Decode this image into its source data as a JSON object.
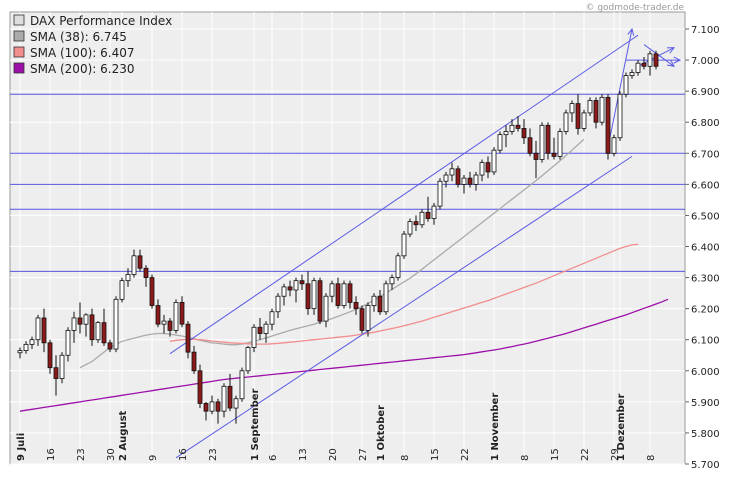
{
  "watermark": "© godmode-trader.de",
  "chart_data": {
    "type": "candlestick",
    "title": "DAX Performance Index",
    "ylim": [
      5700,
      7100
    ],
    "y_ticks": [
      "7.100",
      "7.000",
      "6.900",
      "6.800",
      "6.700",
      "6.600",
      "6.500",
      "6.400",
      "6.300",
      "6.200",
      "6.100",
      "6.000",
      "5.900",
      "5.800",
      "5.700"
    ],
    "y_tick_values": [
      7100,
      7000,
      6900,
      6800,
      6700,
      6600,
      6500,
      6400,
      6300,
      6200,
      6100,
      6000,
      5900,
      5800,
      5700
    ],
    "x_labels": [
      {
        "i": 0,
        "text": "9 Juli",
        "bold": true
      },
      {
        "i": 5,
        "text": "16",
        "bold": false
      },
      {
        "i": 10,
        "text": "23",
        "bold": false
      },
      {
        "i": 15,
        "text": "30",
        "bold": false
      },
      {
        "i": 17,
        "text": "2 August",
        "bold": true
      },
      {
        "i": 22,
        "text": "9",
        "bold": false
      },
      {
        "i": 27,
        "text": "16",
        "bold": false
      },
      {
        "i": 32,
        "text": "23",
        "bold": false
      },
      {
        "i": 39,
        "text": "1 September",
        "bold": true
      },
      {
        "i": 42,
        "text": "6",
        "bold": false
      },
      {
        "i": 47,
        "text": "13",
        "bold": false
      },
      {
        "i": 52,
        "text": "20",
        "bold": false
      },
      {
        "i": 57,
        "text": "27",
        "bold": false
      },
      {
        "i": 60,
        "text": "1 Oktober",
        "bold": true
      },
      {
        "i": 64,
        "text": "8",
        "bold": false
      },
      {
        "i": 69,
        "text": "15",
        "bold": false
      },
      {
        "i": 74,
        "text": "22",
        "bold": false
      },
      {
        "i": 79,
        "text": "1 November",
        "bold": true
      },
      {
        "i": 84,
        "text": "8",
        "bold": false
      },
      {
        "i": 89,
        "text": "15",
        "bold": false
      },
      {
        "i": 94,
        "text": "22",
        "bold": false
      },
      {
        "i": 99,
        "text": "29",
        "bold": false
      },
      {
        "i": 100,
        "text": "1 Dezember",
        "bold": true
      },
      {
        "i": 105,
        "text": "8",
        "bold": false
      }
    ],
    "series": [
      {
        "name": "DAX Performance Index",
        "color": "#cccccc",
        "ohlc": [
          [
            6058,
            6075,
            6040,
            6065
          ],
          [
            6065,
            6095,
            6055,
            6085
          ],
          [
            6085,
            6110,
            6070,
            6100
          ],
          [
            6100,
            6180,
            6080,
            6170
          ],
          [
            6170,
            6200,
            6060,
            6090
          ],
          [
            6090,
            6100,
            5990,
            6010
          ],
          [
            6010,
            6050,
            5920,
            5975
          ],
          [
            5975,
            6060,
            5960,
            6050
          ],
          [
            6050,
            6140,
            6030,
            6130
          ],
          [
            6130,
            6190,
            6090,
            6170
          ],
          [
            6170,
            6220,
            6120,
            6150
          ],
          [
            6150,
            6185,
            6110,
            6180
          ],
          [
            6180,
            6200,
            6080,
            6100
          ],
          [
            6100,
            6160,
            6090,
            6155
          ],
          [
            6155,
            6200,
            6080,
            6090
          ],
          [
            6090,
            6100,
            6060,
            6070
          ],
          [
            6070,
            6240,
            6060,
            6230
          ],
          [
            6230,
            6300,
            6220,
            6290
          ],
          [
            6290,
            6330,
            6270,
            6310
          ],
          [
            6310,
            6390,
            6300,
            6370
          ],
          [
            6370,
            6390,
            6320,
            6330
          ],
          [
            6330,
            6340,
            6270,
            6300
          ],
          [
            6300,
            6310,
            6200,
            6210
          ],
          [
            6210,
            6230,
            6140,
            6150
          ],
          [
            6150,
            6180,
            6120,
            6160
          ],
          [
            6160,
            6170,
            6110,
            6130
          ],
          [
            6130,
            6230,
            6120,
            6220
          ],
          [
            6220,
            6240,
            6140,
            6150
          ],
          [
            6150,
            6160,
            6040,
            6060
          ],
          [
            6060,
            6080,
            5990,
            6000
          ],
          [
            6000,
            6020,
            5880,
            5895
          ],
          [
            5895,
            5900,
            5840,
            5870
          ],
          [
            5870,
            5920,
            5860,
            5900
          ],
          [
            5900,
            5910,
            5830,
            5870
          ],
          [
            5870,
            5960,
            5850,
            5950
          ],
          [
            5950,
            5990,
            5870,
            5880
          ],
          [
            5880,
            5920,
            5830,
            5910
          ],
          [
            5910,
            6010,
            5900,
            6000
          ],
          [
            6000,
            6080,
            5990,
            6075
          ],
          [
            6075,
            6150,
            6060,
            6140
          ],
          [
            6140,
            6170,
            6100,
            6120
          ],
          [
            6120,
            6160,
            6090,
            6150
          ],
          [
            6150,
            6200,
            6130,
            6190
          ],
          [
            6190,
            6250,
            6170,
            6240
          ],
          [
            6240,
            6280,
            6210,
            6270
          ],
          [
            6270,
            6290,
            6240,
            6260
          ],
          [
            6260,
            6300,
            6220,
            6290
          ],
          [
            6290,
            6310,
            6260,
            6280
          ],
          [
            6280,
            6320,
            6180,
            6200
          ],
          [
            6200,
            6300,
            6180,
            6290
          ],
          [
            6290,
            6300,
            6150,
            6160
          ],
          [
            6160,
            6250,
            6140,
            6240
          ],
          [
            6240,
            6290,
            6220,
            6280
          ],
          [
            6280,
            6300,
            6200,
            6210
          ],
          [
            6210,
            6290,
            6200,
            6280
          ],
          [
            6280,
            6290,
            6200,
            6220
          ],
          [
            6220,
            6240,
            6180,
            6200
          ],
          [
            6200,
            6210,
            6120,
            6130
          ],
          [
            6130,
            6220,
            6110,
            6210
          ],
          [
            6210,
            6250,
            6190,
            6240
          ],
          [
            6240,
            6260,
            6180,
            6190
          ],
          [
            6190,
            6290,
            6180,
            6280
          ],
          [
            6280,
            6310,
            6260,
            6300
          ],
          [
            6300,
            6380,
            6290,
            6370
          ],
          [
            6370,
            6450,
            6360,
            6440
          ],
          [
            6440,
            6490,
            6430,
            6480
          ],
          [
            6480,
            6500,
            6450,
            6470
          ],
          [
            6470,
            6520,
            6460,
            6510
          ],
          [
            6510,
            6560,
            6480,
            6490
          ],
          [
            6490,
            6540,
            6470,
            6530
          ],
          [
            6530,
            6620,
            6520,
            6610
          ],
          [
            6610,
            6640,
            6590,
            6630
          ],
          [
            6630,
            6670,
            6610,
            6650
          ],
          [
            6650,
            6660,
            6590,
            6600
          ],
          [
            6600,
            6630,
            6570,
            6620
          ],
          [
            6620,
            6640,
            6590,
            6600
          ],
          [
            6600,
            6640,
            6580,
            6630
          ],
          [
            6630,
            6680,
            6610,
            6670
          ],
          [
            6670,
            6690,
            6620,
            6640
          ],
          [
            6640,
            6720,
            6630,
            6710
          ],
          [
            6710,
            6770,
            6700,
            6760
          ],
          [
            6760,
            6790,
            6720,
            6770
          ],
          [
            6770,
            6810,
            6760,
            6790
          ],
          [
            6790,
            6820,
            6770,
            6780
          ],
          [
            6780,
            6810,
            6730,
            6750
          ],
          [
            6750,
            6780,
            6690,
            6700
          ],
          [
            6700,
            6740,
            6620,
            6680
          ],
          [
            6680,
            6800,
            6670,
            6790
          ],
          [
            6790,
            6800,
            6680,
            6700
          ],
          [
            6700,
            6750,
            6680,
            6690
          ],
          [
            6690,
            6780,
            6680,
            6770
          ],
          [
            6770,
            6840,
            6760,
            6830
          ],
          [
            6830,
            6870,
            6800,
            6860
          ],
          [
            6860,
            6890,
            6760,
            6780
          ],
          [
            6780,
            6840,
            6770,
            6830
          ],
          [
            6830,
            6880,
            6820,
            6870
          ],
          [
            6870,
            6880,
            6780,
            6800
          ],
          [
            6800,
            6890,
            6790,
            6880
          ],
          [
            6880,
            6890,
            6680,
            6700
          ],
          [
            6700,
            6760,
            6690,
            6750
          ],
          [
            6750,
            6900,
            6740,
            6890
          ],
          [
            6890,
            6960,
            6880,
            6950
          ],
          [
            6950,
            6970,
            6940,
            6960
          ],
          [
            6960,
            7000,
            6950,
            6990
          ],
          [
            6990,
            7010,
            6970,
            6980
          ],
          [
            6980,
            7030,
            6950,
            7020
          ],
          [
            7020,
            7030,
            6970,
            6980
          ]
        ]
      },
      {
        "name": "SMA (38)",
        "value_label": "6.745",
        "color": "#aaaaaa",
        "start": 10,
        "values": [
          6010,
          6020,
          6030,
          6045,
          6060,
          6075,
          6085,
          6095,
          6100,
          6105,
          6110,
          6115,
          6118,
          6120,
          6120,
          6118,
          6115,
          6112,
          6108,
          6103,
          6098,
          6094,
          6090,
          6088,
          6086,
          6084,
          6084,
          6086,
          6090,
          6095,
          6100,
          6106,
          6112,
          6118,
          6124,
          6130,
          6135,
          6140,
          6145,
          6150,
          6156,
          6162,
          6168,
          6175,
          6182,
          6190,
          6198,
          6207,
          6217,
          6228,
          6239,
          6250,
          6262,
          6274,
          6286,
          6298,
          6312,
          6327,
          6342,
          6357,
          6372,
          6387,
          6402,
          6417,
          6432,
          6447,
          6462,
          6477,
          6492,
          6507,
          6522,
          6537,
          6552,
          6567,
          6582,
          6597,
          6612,
          6628,
          6644,
          6660,
          6676,
          6693,
          6710,
          6728,
          6745
        ]
      },
      {
        "name": "SMA (100)",
        "value_label": "6.407",
        "color": "#f28d8d",
        "start": 25,
        "values": [
          6095,
          6098,
          6100,
          6101,
          6101,
          6100,
          6098,
          6096,
          6094,
          6092,
          6090,
          6089,
          6088,
          6087,
          6086,
          6086,
          6086,
          6087,
          6088,
          6090,
          6092,
          6094,
          6096,
          6098,
          6100,
          6102,
          6104,
          6106,
          6108,
          6110,
          6112,
          6115,
          6118,
          6121,
          6124,
          6128,
          6132,
          6136,
          6140,
          6145,
          6150,
          6155,
          6160,
          6166,
          6172,
          6178,
          6184,
          6190,
          6196,
          6202,
          6208,
          6214,
          6220,
          6226,
          6233,
          6240,
          6247,
          6254,
          6261,
          6268,
          6275,
          6282,
          6290,
          6298,
          6306,
          6314,
          6322,
          6330,
          6338,
          6346,
          6354,
          6362,
          6370,
          6378,
          6386,
          6394,
          6400,
          6405,
          6407
        ]
      },
      {
        "name": "SMA (200)",
        "value_label": "6.230",
        "color": "#9c0fa8",
        "start": 0,
        "values": [
          5870,
          5873,
          5876,
          5879,
          5882,
          5885,
          5888,
          5891,
          5894,
          5897,
          5900,
          5903,
          5906,
          5909,
          5912,
          5915,
          5918,
          5921,
          5924,
          5927,
          5930,
          5933,
          5936,
          5939,
          5942,
          5945,
          5948,
          5951,
          5954,
          5957,
          5960,
          5963,
          5966,
          5969,
          5972,
          5974,
          5976,
          5978,
          5980,
          5982,
          5984,
          5986,
          5988,
          5990,
          5992,
          5994,
          5996,
          5998,
          6000,
          6002,
          6004,
          6006,
          6008,
          6010,
          6012,
          6014,
          6016,
          6018,
          6020,
          6022,
          6024,
          6026,
          6028,
          6030,
          6032,
          6034,
          6036,
          6038,
          6040,
          6042,
          6044,
          6046,
          6048,
          6050,
          6052,
          6055,
          6058,
          6061,
          6064,
          6067,
          6070,
          6074,
          6078,
          6082,
          6086,
          6090,
          6095,
          6100,
          6105,
          6110,
          6115,
          6120,
          6126,
          6132,
          6138,
          6144,
          6150,
          6156,
          6162,
          6168,
          6174,
          6180,
          6187,
          6194,
          6201,
          6208,
          6215,
          6222,
          6230
        ]
      }
    ],
    "horizontal_lines": [
      6890,
      6700,
      6600,
      6520,
      6320
    ],
    "trend_channel": {
      "upper": {
        "from": [
          25,
          6055
        ],
        "to": [
          103,
          7080
        ]
      },
      "lower": {
        "from": [
          26,
          5720
        ],
        "to": [
          102,
          6690
        ]
      }
    },
    "arrows": [
      {
        "from": [
          98,
          6720
        ],
        "to": [
          102,
          7100
        ]
      },
      {
        "from": [
          103,
          6980
        ],
        "to": [
          109,
          7040
        ]
      },
      {
        "from": [
          101,
          7000
        ],
        "to": [
          110,
          7000
        ]
      },
      {
        "from": [
          104,
          7050
        ],
        "to": [
          109,
          6980
        ]
      }
    ],
    "grid": true,
    "legend_position": "top-left"
  }
}
